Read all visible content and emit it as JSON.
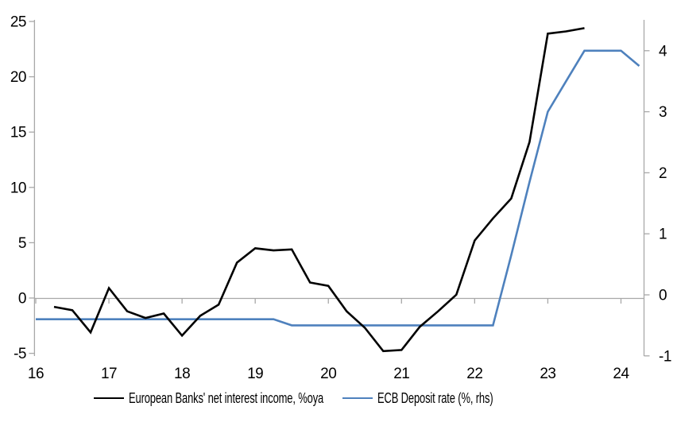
{
  "chart_data": {
    "type": "line",
    "title": "",
    "x_axis": {
      "ticks": [
        16,
        17,
        18,
        19,
        20,
        21,
        22,
        23,
        24
      ],
      "unit": "year"
    },
    "left_axis": {
      "ticks": [
        25,
        20,
        15,
        10,
        5,
        0,
        -5
      ],
      "range": [
        -5,
        25
      ]
    },
    "right_axis": {
      "ticks": [
        4,
        3,
        2,
        1,
        0,
        -1
      ],
      "range": [
        -1,
        4.5
      ]
    },
    "grid": "zero-line-only",
    "legend_position": "bottom",
    "axis_color": "#A8A8A8",
    "series": [
      {
        "name": "European Banks' net interest income, %oya",
        "axis": "left",
        "color": "#000000",
        "x": [
          16.25,
          16.5,
          16.75,
          17.0,
          17.25,
          17.5,
          17.75,
          18.0,
          18.25,
          18.5,
          18.75,
          19.0,
          19.25,
          19.5,
          19.75,
          20.0,
          20.25,
          20.5,
          20.75,
          21.0,
          21.25,
          21.5,
          21.75,
          22.0,
          22.25,
          22.5,
          22.75,
          23.0,
          23.25,
          23.5
        ],
        "values": [
          -0.8,
          -1.1,
          -3.1,
          0.9,
          -1.2,
          -1.8,
          -1.4,
          -3.4,
          -1.6,
          -0.6,
          3.2,
          4.5,
          4.3,
          4.4,
          1.4,
          1.1,
          -1.2,
          -2.7,
          -4.8,
          -4.7,
          -2.6,
          -1.2,
          0.3,
          5.2,
          7.2,
          9.0,
          14.1,
          23.9,
          24.1,
          24.4
        ]
      },
      {
        "name": "ECB Deposit rate (%, rhs)",
        "axis": "right",
        "color": "#4E81BD",
        "x": [
          16.0,
          16.25,
          16.5,
          16.75,
          17.0,
          17.25,
          17.5,
          17.75,
          18.0,
          18.25,
          18.5,
          18.75,
          19.0,
          19.25,
          19.5,
          19.75,
          20.0,
          20.25,
          20.5,
          20.75,
          21.0,
          21.25,
          21.5,
          21.75,
          22.0,
          22.25,
          22.5,
          22.75,
          23.0,
          23.25,
          23.5,
          23.75,
          24.0,
          24.25
        ],
        "values": [
          -0.4,
          -0.4,
          -0.4,
          -0.4,
          -0.4,
          -0.4,
          -0.4,
          -0.4,
          -0.4,
          -0.4,
          -0.4,
          -0.4,
          -0.4,
          -0.4,
          -0.5,
          -0.5,
          -0.5,
          -0.5,
          -0.5,
          -0.5,
          -0.5,
          -0.5,
          -0.5,
          -0.5,
          -0.5,
          -0.5,
          0.65,
          1.85,
          3.0,
          3.5,
          4.0,
          4.0,
          4.0,
          3.75
        ]
      }
    ]
  }
}
